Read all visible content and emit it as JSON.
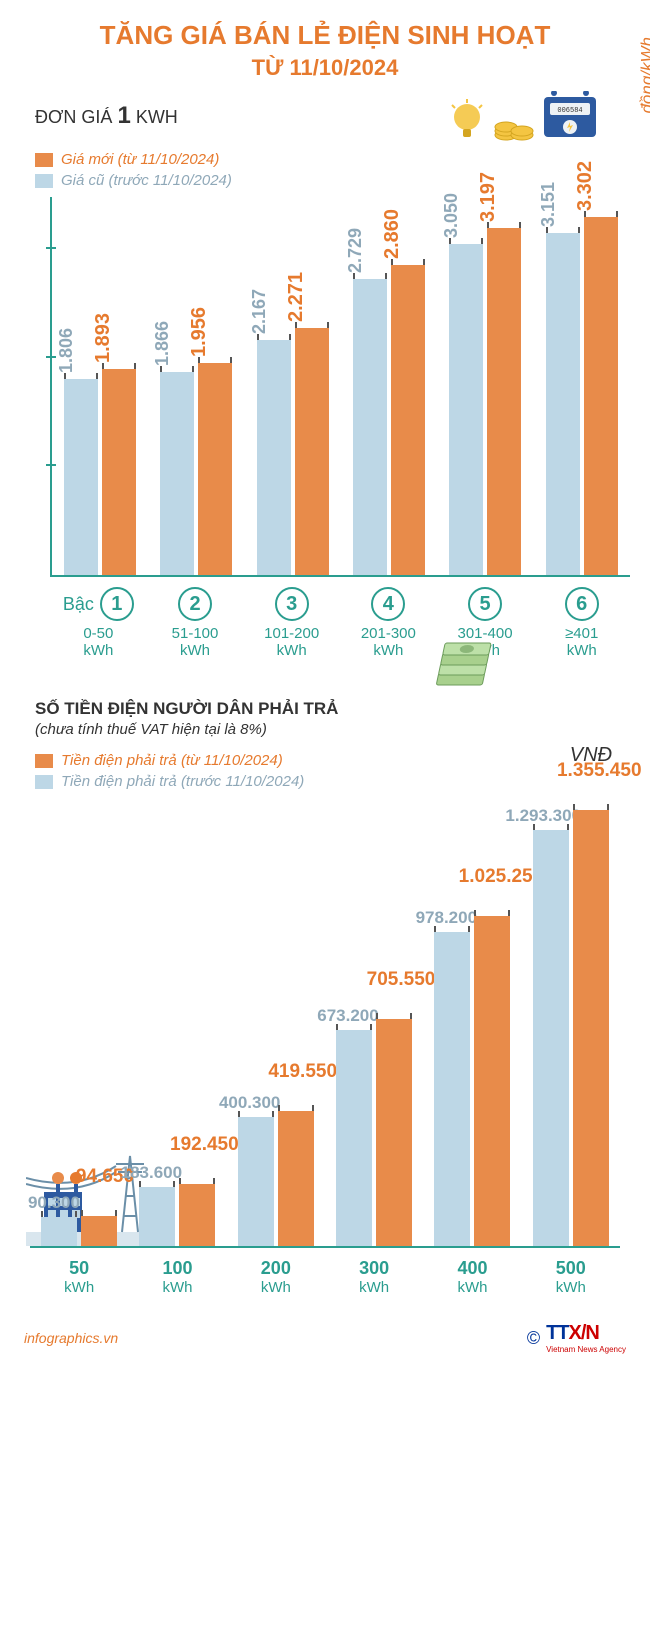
{
  "title": "TĂNG GIÁ BÁN LẺ ĐIỆN SINH HOẠT",
  "subtitle": "TỪ 11/10/2024",
  "unit_label_prefix": "ĐƠN GIÁ ",
  "unit_label_bold": "1",
  "unit_label_suffix": " KWH",
  "chart1": {
    "type": "grouped-bar",
    "legend_new": "Giá mới (từ 11/10/2024)",
    "legend_old": "Giá cũ (trước 11/10/2024)",
    "color_new": "#e88b4a",
    "color_old": "#bdd7e6",
    "label_color_new": "#e67a2e",
    "label_color_old": "#8fa8b8",
    "axis_color": "#2a9d8f",
    "y_unit": "đồng/kWh",
    "bac_label": "Bậc",
    "ylim": [
      0,
      3500
    ],
    "tiers": [
      {
        "num": "1",
        "range": "0-50",
        "unit": "kWh",
        "old": 1806,
        "new": 1893,
        "old_txt": "1.806",
        "new_txt": "1.893"
      },
      {
        "num": "2",
        "range": "51-100",
        "unit": "kWh",
        "old": 1866,
        "new": 1956,
        "old_txt": "1.866",
        "new_txt": "1.956"
      },
      {
        "num": "3",
        "range": "101-200",
        "unit": "kWh",
        "old": 2167,
        "new": 2271,
        "old_txt": "2.167",
        "new_txt": "2.271"
      },
      {
        "num": "4",
        "range": "201-300",
        "unit": "kWh",
        "old": 2729,
        "new": 2860,
        "old_txt": "2.729",
        "new_txt": "2.860"
      },
      {
        "num": "5",
        "range": "301-400",
        "unit": "kWh",
        "old": 3050,
        "new": 3197,
        "old_txt": "3.050",
        "new_txt": "3.197"
      },
      {
        "num": "6",
        "range": "≥401",
        "unit": "kWh",
        "old": 3151,
        "new": 3302,
        "old_txt": "3.151",
        "new_txt": "3.302"
      }
    ]
  },
  "chart2": {
    "type": "grouped-bar",
    "title": "SỐ TIỀN ĐIỆN NGƯỜI DÂN PHẢI TRẢ",
    "subtitle": "(chưa tính thuế VAT hiện tại là 8%)",
    "legend_new": "Tiền điện phải trả (từ 11/10/2024)",
    "legend_old": "Tiền điện phải trả (trước 11/10/2024)",
    "currency": "VNĐ",
    "color_new": "#e88b4a",
    "color_old": "#bdd7e6",
    "ylim": [
      0,
      1400000
    ],
    "points": [
      {
        "x": "50",
        "unit": "kWh",
        "old": 90300,
        "new": 94650,
        "old_txt": "90.300",
        "new_txt": "94.650"
      },
      {
        "x": "100",
        "unit": "kWh",
        "old": 183600,
        "new": 192450,
        "old_txt": "183.600",
        "new_txt": "192.450"
      },
      {
        "x": "200",
        "unit": "kWh",
        "old": 400300,
        "new": 419550,
        "old_txt": "400.300",
        "new_txt": "419.550"
      },
      {
        "x": "300",
        "unit": "kWh",
        "old": 673200,
        "new": 705550,
        "old_txt": "673.200",
        "new_txt": "705.550"
      },
      {
        "x": "400",
        "unit": "kWh",
        "old": 978200,
        "new": 1025250,
        "old_txt": "978.200",
        "new_txt": "1.025.250"
      },
      {
        "x": "500",
        "unit": "kWh",
        "old": 1293300,
        "new": 1355450,
        "old_txt": "1.293.300",
        "new_txt": "1.355.450"
      }
    ]
  },
  "footer": {
    "left": "infographics.vn",
    "logo_tt": "TT",
    "logo_xvn": "X/N",
    "logo_sub": "Vietnam News Agency"
  },
  "icons": {
    "bulb_fill": "#f4c542",
    "meter_fill": "#2d5aa0",
    "meter_screen": "#eef2f5",
    "coin_fill": "#f4c542",
    "money_fill": "#a8d08d",
    "tower_fill": "#6b8fa8"
  }
}
